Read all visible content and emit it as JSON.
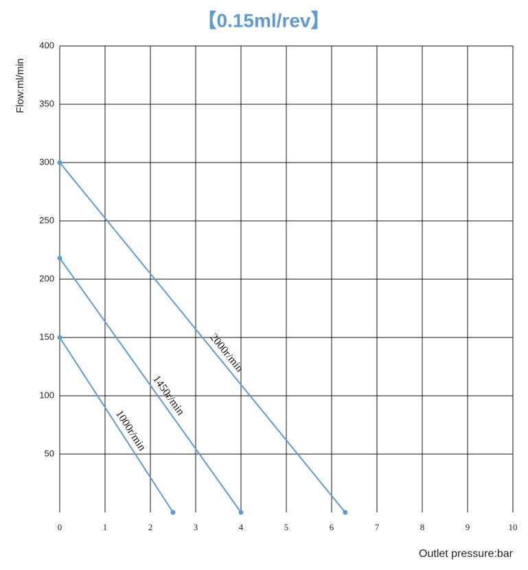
{
  "chart_data": {
    "type": "line",
    "title": "【0.15ml/rev】",
    "y_label": "Flow:ml/min",
    "x_label": "Outlet pressure:bar",
    "xlim": [
      0,
      10
    ],
    "xticks": [
      0,
      1,
      2,
      3,
      4,
      5,
      6,
      7,
      8,
      9,
      10
    ],
    "ylim": [
      0,
      400
    ],
    "yticks": [
      50,
      100,
      150,
      200,
      250,
      300,
      350,
      400
    ],
    "grid": true,
    "series": [
      {
        "name": "2000r/min",
        "color": "#5b9bd5",
        "x": [
          0,
          6.3
        ],
        "values": [
          300,
          0
        ]
      },
      {
        "name": "1450r/min",
        "color": "#5b9bd5",
        "x": [
          0,
          4
        ],
        "values": [
          218,
          0
        ]
      },
      {
        "name": "1000r/min",
        "color": "#5b9bd5",
        "x": [
          0,
          2.5
        ],
        "values": [
          150,
          0
        ]
      }
    ]
  }
}
